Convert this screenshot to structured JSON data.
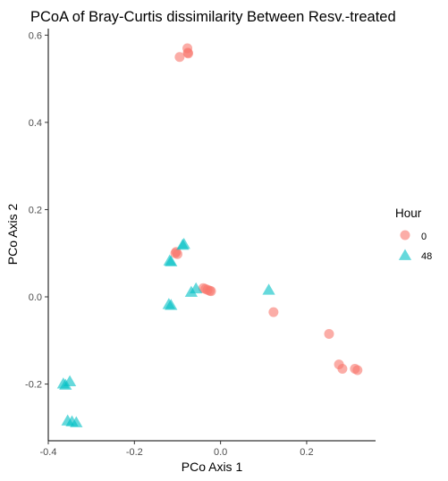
{
  "colors": {
    "hour0": "#F8766D",
    "hour48": "#00BFC4",
    "axis": "#000000",
    "tick_text": "#4d4d4d"
  },
  "chart_data": {
    "type": "scatter",
    "title": "PCoA of Bray-Curtis dissimilarity Between Resv.-treated",
    "xlabel": "PCo Axis 1",
    "ylabel": "PCo Axis 2",
    "xlim": [
      -0.4,
      0.36
    ],
    "ylim": [
      -0.33,
      0.615
    ],
    "x_ticks": [
      -0.4,
      -0.2,
      0.0,
      0.2
    ],
    "x_tick_labels": [
      "-0.4",
      "-0.2",
      "0.0",
      "0.2"
    ],
    "y_ticks": [
      -0.2,
      0.0,
      0.2,
      0.4,
      0.6
    ],
    "y_tick_labels": [
      "-0.2",
      "0.0",
      "0.2",
      "0.4",
      "0.6"
    ],
    "grid": false,
    "legend": {
      "title": "Hour",
      "position": "right"
    },
    "series": [
      {
        "name": "0",
        "marker": "circle",
        "color": "#F8766D",
        "points": [
          [
            -0.077,
            0.57
          ],
          [
            -0.075,
            0.558
          ],
          [
            -0.076,
            0.56
          ],
          [
            -0.095,
            0.55
          ],
          [
            -0.105,
            0.1
          ],
          [
            -0.1,
            0.098
          ],
          [
            -0.103,
            0.103
          ],
          [
            -0.04,
            0.02
          ],
          [
            -0.035,
            0.018
          ],
          [
            -0.03,
            0.016
          ],
          [
            -0.025,
            0.014
          ],
          [
            -0.022,
            0.013
          ],
          [
            0.123,
            -0.035
          ],
          [
            0.252,
            -0.085
          ],
          [
            0.275,
            -0.155
          ],
          [
            0.283,
            -0.165
          ],
          [
            0.312,
            -0.165
          ],
          [
            0.318,
            -0.168
          ]
        ]
      },
      {
        "name": "48",
        "marker": "triangle",
        "color": "#00BFC4",
        "points": [
          [
            -0.085,
            0.12
          ],
          [
            -0.088,
            0.118
          ],
          [
            -0.118,
            0.082
          ],
          [
            -0.115,
            0.08
          ],
          [
            -0.057,
            0.018
          ],
          [
            -0.068,
            0.01
          ],
          [
            -0.12,
            -0.018
          ],
          [
            -0.115,
            -0.02
          ],
          [
            0.112,
            0.015
          ],
          [
            -0.35,
            -0.195
          ],
          [
            -0.365,
            -0.2
          ],
          [
            -0.36,
            -0.203
          ],
          [
            -0.355,
            -0.285
          ],
          [
            -0.345,
            -0.287
          ],
          [
            -0.335,
            -0.289
          ]
        ]
      }
    ]
  }
}
